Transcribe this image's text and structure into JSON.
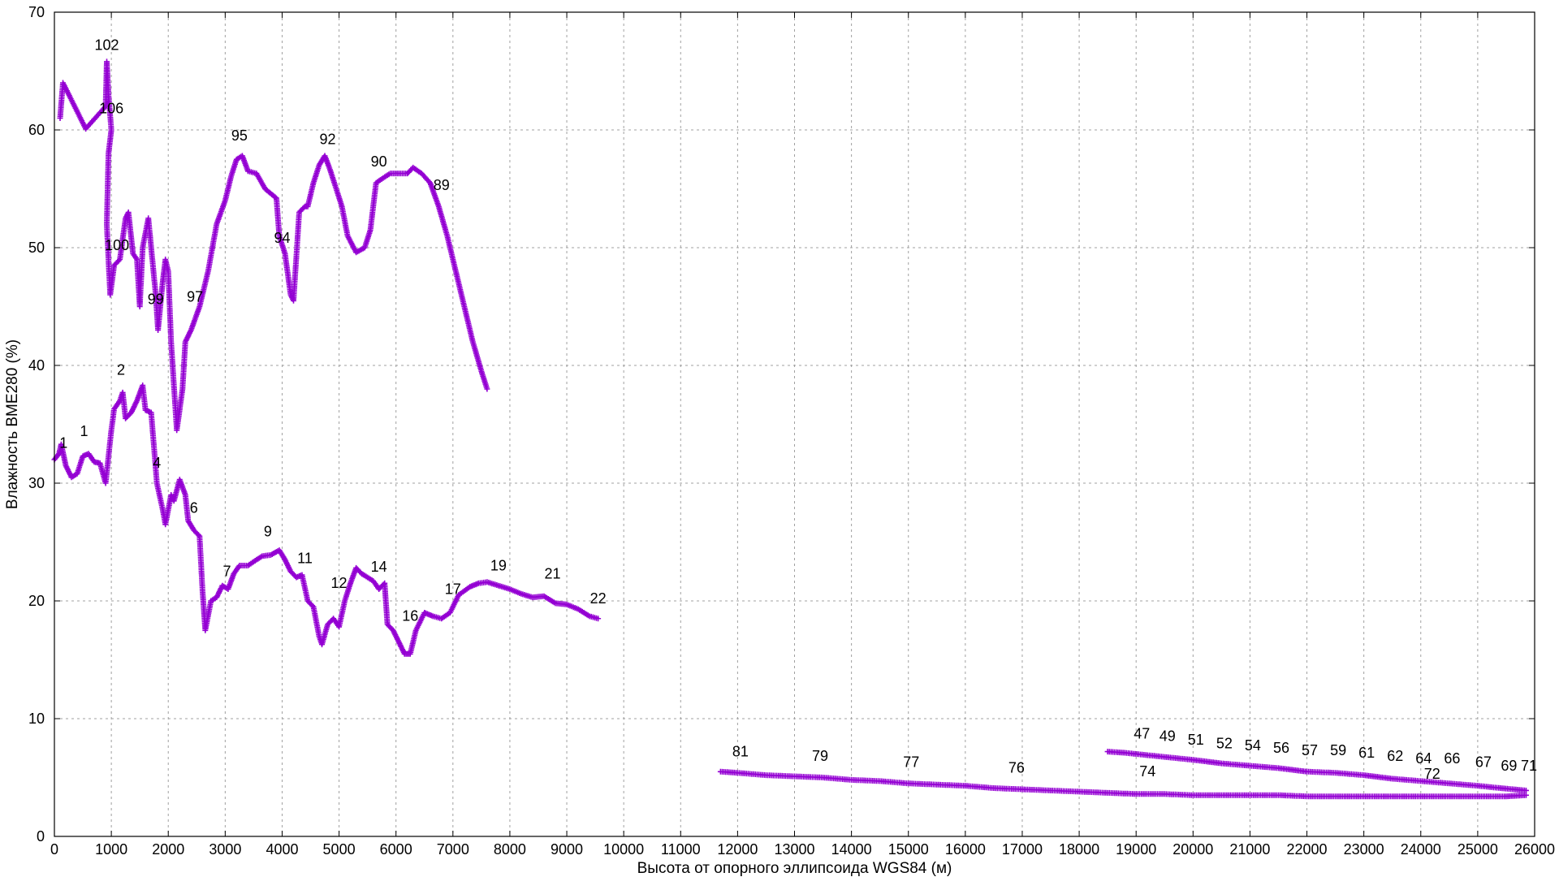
{
  "chart_data": {
    "type": "scatter",
    "title": "",
    "xlabel": "Высота от опорного эллипсоида WGS84 (м)",
    "ylabel": "Влажность BME280 (%)",
    "xlim": [
      0,
      26000
    ],
    "ylim": [
      0,
      70
    ],
    "x_ticks": [
      0,
      1000,
      2000,
      3000,
      4000,
      5000,
      6000,
      7000,
      8000,
      9000,
      10000,
      11000,
      12000,
      13000,
      14000,
      15000,
      16000,
      17000,
      18000,
      19000,
      20000,
      21000,
      22000,
      23000,
      24000,
      25000,
      26000
    ],
    "y_ticks": [
      0,
      10,
      20,
      30,
      40,
      50,
      60,
      70
    ],
    "grid": true,
    "marker": "+",
    "color": "#9400d3",
    "series": [
      {
        "points": [
          [
            0,
            32
          ],
          [
            80,
            32.5
          ],
          [
            120,
            33.3
          ],
          [
            200,
            31.5
          ],
          [
            300,
            30.5
          ],
          [
            400,
            30.8
          ],
          [
            500,
            32.3
          ],
          [
            600,
            32.5
          ],
          [
            700,
            31.8
          ],
          [
            800,
            31.7
          ],
          [
            900,
            30
          ],
          [
            1000,
            34.5
          ],
          [
            1050,
            36.3
          ],
          [
            1150,
            37
          ],
          [
            1200,
            37.7
          ],
          [
            1250,
            35.5
          ],
          [
            1350,
            36
          ],
          [
            1450,
            37
          ],
          [
            1550,
            38.3
          ],
          [
            1600,
            36.2
          ],
          [
            1700,
            36
          ],
          [
            1750,
            33
          ],
          [
            1800,
            30
          ],
          [
            1900,
            27.8
          ],
          [
            1950,
            26.5
          ],
          [
            2050,
            29
          ],
          [
            2100,
            28.5
          ],
          [
            2200,
            30.3
          ],
          [
            2300,
            29
          ],
          [
            2350,
            26.8
          ],
          [
            2450,
            26
          ],
          [
            2550,
            25.5
          ],
          [
            2600,
            21
          ],
          [
            2650,
            17.5
          ],
          [
            2750,
            20
          ],
          [
            2850,
            20.3
          ],
          [
            2950,
            21.3
          ],
          [
            3050,
            21
          ],
          [
            3150,
            22.3
          ],
          [
            3250,
            23
          ],
          [
            3400,
            23
          ],
          [
            3550,
            23.5
          ],
          [
            3650,
            23.8
          ],
          [
            3800,
            23.9
          ],
          [
            3950,
            24.3
          ],
          [
            4050,
            23.5
          ],
          [
            4150,
            22.5
          ],
          [
            4250,
            22
          ],
          [
            4350,
            22.2
          ],
          [
            4450,
            20
          ],
          [
            4550,
            19.5
          ],
          [
            4650,
            17
          ],
          [
            4700,
            16.3
          ],
          [
            4800,
            18
          ],
          [
            4900,
            18.5
          ],
          [
            5000,
            17.8
          ],
          [
            5100,
            20
          ],
          [
            5200,
            21.5
          ],
          [
            5300,
            22.8
          ],
          [
            5400,
            22.3
          ],
          [
            5500,
            22
          ],
          [
            5600,
            21.7
          ],
          [
            5700,
            21
          ],
          [
            5800,
            21.5
          ],
          [
            5850,
            18
          ],
          [
            5950,
            17.5
          ],
          [
            6050,
            16.5
          ],
          [
            6150,
            15.5
          ],
          [
            6250,
            15.5
          ],
          [
            6350,
            17.5
          ],
          [
            6500,
            19
          ],
          [
            6650,
            18.7
          ],
          [
            6800,
            18.5
          ],
          [
            6950,
            19
          ],
          [
            7100,
            20.5
          ],
          [
            7300,
            21.2
          ],
          [
            7450,
            21.5
          ],
          [
            7600,
            21.6
          ],
          [
            7800,
            21.3
          ],
          [
            8000,
            21
          ],
          [
            8200,
            20.6
          ],
          [
            8400,
            20.3
          ],
          [
            8600,
            20.4
          ],
          [
            8800,
            19.8
          ],
          [
            9000,
            19.7
          ],
          [
            9200,
            19.3
          ],
          [
            9400,
            18.7
          ],
          [
            9550,
            18.5
          ]
        ]
      },
      {
        "points": [
          [
            100,
            61
          ],
          [
            150,
            64
          ],
          [
            550,
            60.1
          ],
          [
            900,
            62
          ],
          [
            920,
            65.8
          ],
          [
            950,
            63
          ],
          [
            1000,
            60
          ],
          [
            950,
            58
          ],
          [
            920,
            52
          ],
          [
            980,
            46
          ],
          [
            1050,
            48.5
          ],
          [
            1150,
            49
          ],
          [
            1250,
            52.5
          ],
          [
            1300,
            53
          ],
          [
            1380,
            49.5
          ],
          [
            1450,
            49
          ],
          [
            1500,
            45
          ],
          [
            1550,
            50
          ],
          [
            1650,
            52.5
          ],
          [
            1700,
            50
          ],
          [
            1780,
            46
          ],
          [
            1820,
            43
          ],
          [
            1900,
            47
          ],
          [
            1950,
            49
          ],
          [
            2000,
            48
          ],
          [
            2050,
            42
          ],
          [
            2150,
            34.5
          ],
          [
            2250,
            38
          ],
          [
            2300,
            42
          ],
          [
            2400,
            43
          ],
          [
            2550,
            45
          ],
          [
            2700,
            48
          ],
          [
            2850,
            52
          ],
          [
            3000,
            54
          ],
          [
            3100,
            56
          ],
          [
            3200,
            57.5
          ],
          [
            3300,
            57.8
          ],
          [
            3400,
            56.5
          ],
          [
            3550,
            56.3
          ],
          [
            3700,
            55
          ],
          [
            3800,
            54.6
          ],
          [
            3900,
            54.2
          ],
          [
            3950,
            51
          ],
          [
            4050,
            49.5
          ],
          [
            4150,
            46
          ],
          [
            4200,
            45.5
          ],
          [
            4300,
            53
          ],
          [
            4400,
            53.5
          ],
          [
            4450,
            53.5
          ],
          [
            4550,
            55.5
          ],
          [
            4650,
            57
          ],
          [
            4750,
            57.8
          ],
          [
            4850,
            56.5
          ],
          [
            4950,
            55
          ],
          [
            5050,
            53.5
          ],
          [
            5150,
            51
          ],
          [
            5300,
            49.6
          ],
          [
            5450,
            50
          ],
          [
            5550,
            51.5
          ],
          [
            5650,
            55.5
          ],
          [
            5800,
            56
          ],
          [
            5900,
            56.3
          ],
          [
            6050,
            56.3
          ],
          [
            6200,
            56.3
          ],
          [
            6300,
            56.8
          ],
          [
            6450,
            56.3
          ],
          [
            6600,
            55.5
          ],
          [
            6750,
            53.5
          ],
          [
            6900,
            51
          ],
          [
            7050,
            48
          ],
          [
            7200,
            45
          ],
          [
            7350,
            42
          ],
          [
            7500,
            39.5
          ],
          [
            7600,
            38
          ]
        ]
      },
      {
        "points": [
          [
            11700,
            5.5
          ],
          [
            12000,
            5.4
          ],
          [
            12500,
            5.2
          ],
          [
            13000,
            5.1
          ],
          [
            13500,
            5
          ],
          [
            14000,
            4.8
          ],
          [
            14500,
            4.7
          ],
          [
            15000,
            4.5
          ],
          [
            15500,
            4.4
          ],
          [
            16000,
            4.3
          ],
          [
            16500,
            4.1
          ],
          [
            17000,
            4
          ],
          [
            17500,
            3.9
          ],
          [
            18000,
            3.8
          ],
          [
            18500,
            3.7
          ],
          [
            19000,
            3.6
          ],
          [
            19500,
            3.6
          ],
          [
            20000,
            3.5
          ],
          [
            20500,
            3.5
          ],
          [
            21000,
            3.5
          ],
          [
            21500,
            3.5
          ],
          [
            22000,
            3.4
          ],
          [
            22500,
            3.4
          ],
          [
            23000,
            3.4
          ],
          [
            23500,
            3.4
          ],
          [
            24000,
            3.4
          ],
          [
            24500,
            3.4
          ],
          [
            25000,
            3.4
          ],
          [
            25500,
            3.4
          ],
          [
            25850,
            3.5
          ]
        ]
      },
      {
        "points": [
          [
            18500,
            7.2
          ],
          [
            18800,
            7.1
          ],
          [
            19200,
            6.9
          ],
          [
            19600,
            6.7
          ],
          [
            20000,
            6.5
          ],
          [
            20500,
            6.2
          ],
          [
            21000,
            6
          ],
          [
            21500,
            5.8
          ],
          [
            22000,
            5.5
          ],
          [
            22500,
            5.4
          ],
          [
            23000,
            5.2
          ],
          [
            23500,
            4.9
          ],
          [
            24000,
            4.7
          ],
          [
            24500,
            4.5
          ],
          [
            25000,
            4.3
          ],
          [
            25400,
            4.1
          ],
          [
            25850,
            3.9
          ]
        ]
      }
    ],
    "annotations": [
      {
        "text": "1",
        "x": 160,
        "y": 33
      },
      {
        "text": "1",
        "x": 520,
        "y": 34
      },
      {
        "text": "2",
        "x": 1170,
        "y": 39.2
      },
      {
        "text": "4",
        "x": 1800,
        "y": 31.3
      },
      {
        "text": "6",
        "x": 2450,
        "y": 27.5
      },
      {
        "text": "7",
        "x": 3030,
        "y": 22.1
      },
      {
        "text": "9",
        "x": 3750,
        "y": 25.5
      },
      {
        "text": "11",
        "x": 4400,
        "y": 23.2
      },
      {
        "text": "12",
        "x": 5000,
        "y": 21.1
      },
      {
        "text": "14",
        "x": 5700,
        "y": 22.5
      },
      {
        "text": "16",
        "x": 6250,
        "y": 18.3
      },
      {
        "text": "17",
        "x": 7000,
        "y": 20.6
      },
      {
        "text": "19",
        "x": 7800,
        "y": 22.6
      },
      {
        "text": "21",
        "x": 8750,
        "y": 21.9
      },
      {
        "text": "22",
        "x": 9550,
        "y": 19.8
      },
      {
        "text": "102",
        "x": 920,
        "y": 66.8
      },
      {
        "text": "106",
        "x": 1000,
        "y": 61.4
      },
      {
        "text": "100",
        "x": 1100,
        "y": 49.8
      },
      {
        "text": "99",
        "x": 1780,
        "y": 45.2
      },
      {
        "text": "97",
        "x": 2470,
        "y": 45.4
      },
      {
        "text": "95",
        "x": 3250,
        "y": 59.1
      },
      {
        "text": "94",
        "x": 4000,
        "y": 50.4
      },
      {
        "text": "92",
        "x": 4800,
        "y": 58.8
      },
      {
        "text": "90",
        "x": 5700,
        "y": 56.9
      },
      {
        "text": "89",
        "x": 6800,
        "y": 54.9
      },
      {
        "text": "81",
        "x": 12050,
        "y": 6.8
      },
      {
        "text": "79",
        "x": 13450,
        "y": 6.4
      },
      {
        "text": "77",
        "x": 15050,
        "y": 5.9
      },
      {
        "text": "76",
        "x": 16900,
        "y": 5.4
      },
      {
        "text": "74",
        "x": 19200,
        "y": 5.1
      },
      {
        "text": "47",
        "x": 19100,
        "y": 8.3
      },
      {
        "text": "49",
        "x": 19550,
        "y": 8.1
      },
      {
        "text": "51",
        "x": 20050,
        "y": 7.8
      },
      {
        "text": "52",
        "x": 20550,
        "y": 7.5
      },
      {
        "text": "54",
        "x": 21050,
        "y": 7.3
      },
      {
        "text": "56",
        "x": 21550,
        "y": 7.1
      },
      {
        "text": "57",
        "x": 22050,
        "y": 6.9
      },
      {
        "text": "59",
        "x": 22550,
        "y": 6.9
      },
      {
        "text": "61",
        "x": 23050,
        "y": 6.7
      },
      {
        "text": "62",
        "x": 23550,
        "y": 6.4
      },
      {
        "text": "64",
        "x": 24050,
        "y": 6.2
      },
      {
        "text": "72",
        "x": 24200,
        "y": 4.9
      },
      {
        "text": "66",
        "x": 24550,
        "y": 6.2
      },
      {
        "text": "67",
        "x": 25100,
        "y": 5.9
      },
      {
        "text": "69",
        "x": 25550,
        "y": 5.6
      },
      {
        "text": "71",
        "x": 25900,
        "y": 5.6
      }
    ]
  }
}
